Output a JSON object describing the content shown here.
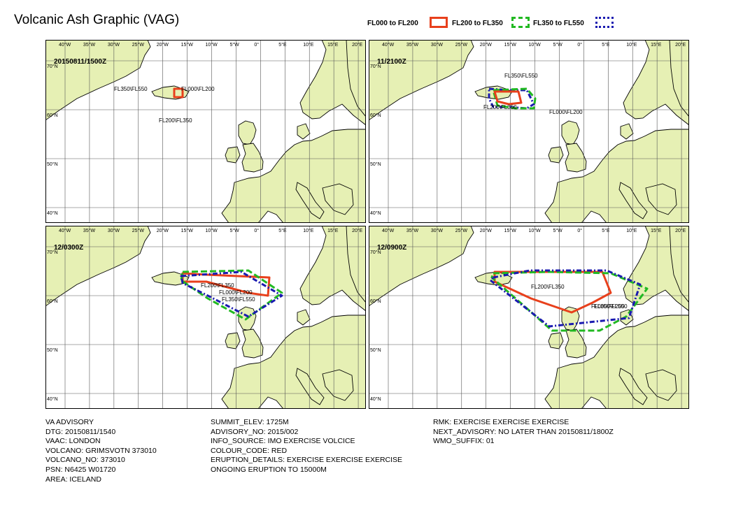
{
  "title": "Volcanic Ash Graphic (VAG)",
  "legend": [
    {
      "label": "FL000 to FL200",
      "color": "#e8401c",
      "style": "solid",
      "icon": "solid-box-icon"
    },
    {
      "label": "FL200 to FL350",
      "color": "#22b922",
      "style": "dashed",
      "icon": "dashed-box-icon"
    },
    {
      "label": "FL350 to FL550",
      "color": "#1a1ab0",
      "style": "dashdot",
      "icon": "dashdot-box-icon"
    }
  ],
  "map": {
    "land_color": "#e6f0b4",
    "sea_color": "#ffffff",
    "grid_color": "#555555",
    "longitude_labels": [
      "40°W",
      "35°W",
      "30°W",
      "25°W",
      "20°W",
      "15°W",
      "10°W",
      "5°W",
      "0°",
      "5°E",
      "10°E",
      "15°E",
      "20°E"
    ],
    "latitude_labels": [
      "70°N",
      "60°N",
      "50°N",
      "40°N"
    ]
  },
  "panels": [
    {
      "timestamp": "20150811/1500Z",
      "labels": [
        {
          "text": "FL350\\FL550"
        },
        {
          "text": "FL000\\FL200"
        },
        {
          "text": "FL200\\FL350"
        }
      ]
    },
    {
      "timestamp": "11/2100Z",
      "labels": [
        {
          "text": "FL350\\FL550"
        },
        {
          "text": "FL200\\FL350"
        },
        {
          "text": "FL000\\FL200"
        }
      ]
    },
    {
      "timestamp": "12/0300Z",
      "labels": [
        {
          "text": "FL200\\FL350"
        },
        {
          "text": "FL000\\FL200"
        },
        {
          "text": "FL350\\FL550"
        }
      ]
    },
    {
      "timestamp": "12/0900Z",
      "labels": [
        {
          "text": "FL200\\FL350"
        },
        {
          "text": "FL000\\FL200"
        },
        {
          "text": "FL350\\FL550"
        }
      ]
    }
  ],
  "advisory": {
    "col1": [
      "VA ADVISORY",
      "DTG: 20150811/1540",
      "VAAC: LONDON",
      "VOLCANO: GRIMSVOTN 373010",
      "VOLCANO_NO: 373010",
      "PSN: N6425 W01720",
      "AREA: ICELAND"
    ],
    "col2": [
      "SUMMIT_ELEV: 1725M",
      "ADVISORY_NO: 2015/002",
      "INFO_SOURCE: IMO EXERCISE VOLCICE",
      "COLOUR_CODE: RED",
      "ERUPTION_DETAILS: EXERCISE EXERCISE EXERCISE",
      "ONGOING ERUPTION TO 15000M"
    ],
    "col3": [
      "RMK: EXERCISE EXERCISE EXERCISE",
      "NEXT_ADVISORY: NO LATER THAN 20150811/1800Z",
      "WMO_SUFFIX: 01"
    ]
  }
}
